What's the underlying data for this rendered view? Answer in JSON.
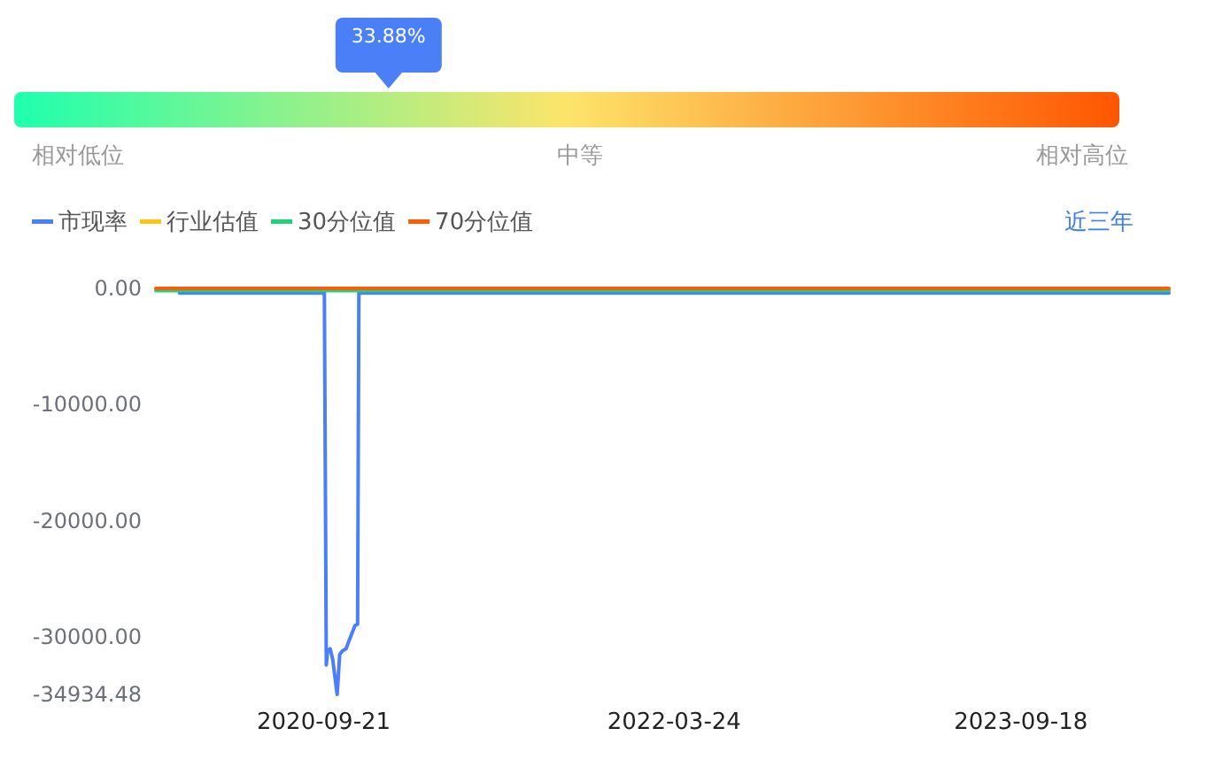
{
  "chart_data": [
    {
      "type": "other",
      "values": [
        33.88
      ],
      "value_labels": [
        "33.88%"
      ],
      "color": "#4a7ff8",
      "annotations": [
        "相对低位",
        "中等",
        "相对高位"
      ]
    },
    {
      "type": "line",
      "series": [
        {
          "name": "市现率",
          "color": "#4a7ff7",
          "x": [
            "2020-02-08",
            "2020-09-22",
            "2020-09-25",
            "2020-09-27",
            "2020-10-01",
            "2020-10-05",
            "2020-10-12",
            "2020-10-16",
            "2020-10-20",
            "2020-10-26",
            "2020-10-30",
            "2020-11-04",
            "2020-11-09",
            "2020-11-13",
            "2020-11-15",
            "2024-05-07"
          ],
          "values": [
            -400,
            -400,
            -32400,
            -31200,
            -31000,
            -31900,
            -34934.48,
            -31500,
            -31200,
            -31000,
            -30400,
            -29700,
            -29000,
            -28900,
            -400,
            -400
          ]
        },
        {
          "name": "行业估值",
          "color": "#fcc419"
        },
        {
          "name": "30分位值",
          "color": "#21d07a",
          "x": [
            "2020-01-02",
            "2024-05-07"
          ],
          "values": [
            -200,
            -200
          ]
        },
        {
          "name": "70分位值",
          "color": "#ff5b05",
          "x": [
            "2020-01-02",
            "2024-05-07"
          ],
          "values": [
            0,
            0
          ]
        }
      ],
      "xlim": [
        "2020-01-02",
        "2024-05-07"
      ],
      "xticks": [
        "2020-09-21",
        "2022-03-24",
        "2023-09-18"
      ],
      "ylim": [
        -34934.48,
        0
      ],
      "yticks": [
        {
          "value": 0,
          "label": "0.00"
        },
        {
          "value": -10000,
          "label": "-10000.00"
        },
        {
          "value": -20000,
          "label": "-20000.00"
        },
        {
          "value": -30000,
          "label": "-30000.00"
        },
        {
          "value": -34934.48,
          "label": "-34934.48"
        }
      ],
      "legend": "top left",
      "annotations": [
        "近三年"
      ]
    }
  ]
}
